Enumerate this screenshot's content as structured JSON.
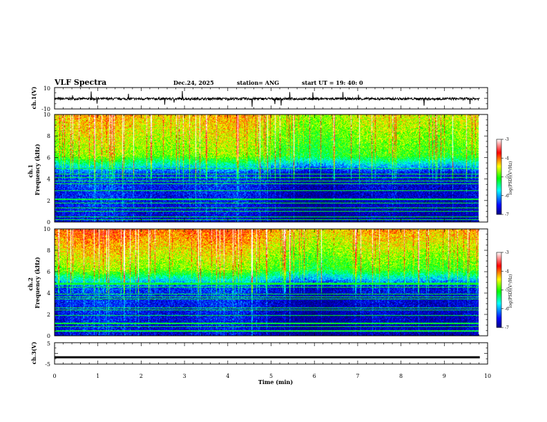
{
  "header": {
    "title": "VLF Spectra",
    "date": "Dec.24, 2025",
    "station": "station= ANG",
    "start": "start  UT =   19: 40: 0"
  },
  "chart_data": [
    {
      "type": "line",
      "name": "ch1-waveform",
      "ylabel": "ch.1(V)",
      "ylim": [
        -10,
        10
      ],
      "ytick_labels": [
        "10",
        "-10"
      ],
      "baseline": -0.5
    },
    {
      "type": "heatmap",
      "name": "ch1-spectrogram",
      "ylabel_top": "ch.1",
      "ylabel": "Frequency (kHz)",
      "ylim": [
        0,
        10
      ],
      "ytick_labels": [
        "0",
        "2",
        "4",
        "6",
        "8",
        "10"
      ],
      "colorbar": {
        "label": "log(PSD)(V²/Hz)",
        "range": [
          -7,
          -3
        ],
        "tick_labels": [
          "-3",
          "-4",
          "-5",
          "-6",
          "-7"
        ]
      }
    },
    {
      "type": "heatmap",
      "name": "ch2-spectrogram",
      "ylabel_top": "ch.2",
      "ylabel": "Frequency (kHz)",
      "ylim": [
        0,
        10
      ],
      "ytick_labels": [
        "0",
        "2",
        "4",
        "6",
        "8",
        "10"
      ],
      "colorbar": {
        "label": "log(PSD)(V²/Hz)",
        "range": [
          -7,
          -3
        ],
        "tick_labels": [
          "-3",
          "-4",
          "-5",
          "-6",
          "-7"
        ]
      }
    },
    {
      "type": "line",
      "name": "ch3-trace",
      "ylabel": "ch.3(V)",
      "ylim": [
        -5,
        5
      ],
      "ytick_labels": [
        "5",
        "-5"
      ],
      "baseline": -1.8
    }
  ],
  "x_axis": {
    "xlabel": "Time (min)",
    "xlim": [
      0,
      10
    ],
    "tick_labels": [
      "0",
      "1",
      "2",
      "3",
      "4",
      "5",
      "6",
      "7",
      "8",
      "9",
      "10"
    ],
    "data_end": 9.82
  },
  "colors": {
    "colormap": [
      "#000080",
      "#0000ff",
      "#00ffff",
      "#00ff00",
      "#ffff00",
      "#ff0000",
      "#ffffff"
    ]
  }
}
